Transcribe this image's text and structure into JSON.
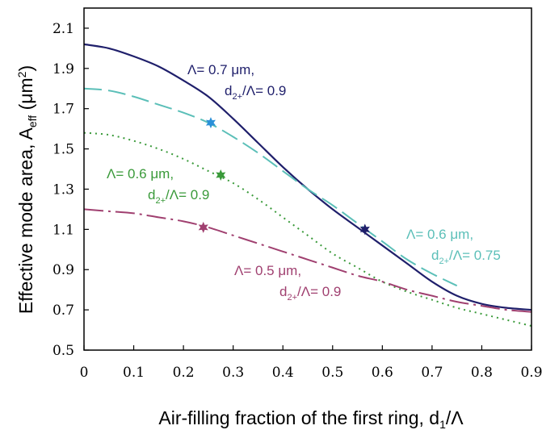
{
  "chart_data": {
    "type": "line",
    "xlabel": "Air-filling fraction of the first ring, d",
    "xlabel_sub": "1",
    "xlabel_tail": "/Λ",
    "ylabel": "Effective mode area, A",
    "ylabel_sub": "eff",
    "ylabel_unit": " (μm",
    "ylabel_sup": "2",
    "ylabel_close": ")",
    "xlim": [
      0,
      0.9
    ],
    "ylim": [
      0.5,
      2.2
    ],
    "x_ticks": [
      "0",
      "0.1",
      "0.2",
      "0.3",
      "0.4",
      "0.5",
      "0.6",
      "0.7",
      "0.8",
      "0.9"
    ],
    "y_ticks": [
      "0.5",
      "0.7",
      "0.9",
      "1.1",
      "1.3",
      "1.5",
      "1.7",
      "1.9",
      "2.1"
    ],
    "series": [
      {
        "color": "#1f1f6b",
        "dash": "",
        "x": [
          0,
          0.05,
          0.1,
          0.15,
          0.2,
          0.25,
          0.3,
          0.35,
          0.4,
          0.45,
          0.5,
          0.55,
          0.6,
          0.65,
          0.7,
          0.75,
          0.8,
          0.85,
          0.9
        ],
        "y": [
          2.02,
          2.0,
          1.96,
          1.91,
          1.84,
          1.76,
          1.65,
          1.53,
          1.41,
          1.3,
          1.2,
          1.11,
          1.02,
          0.93,
          0.84,
          0.77,
          0.73,
          0.71,
          0.7
        ]
      },
      {
        "color": "#5bbfb8",
        "dash": "22,8",
        "x": [
          0,
          0.05,
          0.1,
          0.15,
          0.2,
          0.25,
          0.3,
          0.35,
          0.4,
          0.45,
          0.5,
          0.55,
          0.6,
          0.65,
          0.7,
          0.75
        ],
        "y": [
          1.8,
          1.79,
          1.76,
          1.72,
          1.68,
          1.63,
          1.56,
          1.48,
          1.39,
          1.3,
          1.22,
          1.13,
          1.04,
          0.95,
          0.88,
          0.82
        ]
      },
      {
        "color": "#3a9a3a",
        "dash": "2,5",
        "x": [
          0,
          0.05,
          0.1,
          0.15,
          0.2,
          0.25,
          0.3,
          0.35,
          0.4,
          0.45,
          0.5,
          0.55,
          0.6,
          0.65,
          0.7,
          0.75,
          0.8,
          0.85,
          0.9
        ],
        "y": [
          1.58,
          1.57,
          1.54,
          1.5,
          1.45,
          1.39,
          1.33,
          1.25,
          1.16,
          1.07,
          0.98,
          0.91,
          0.84,
          0.79,
          0.75,
          0.71,
          0.68,
          0.65,
          0.62
        ]
      },
      {
        "color": "#a04070",
        "dash": "24,6,3,6",
        "x": [
          0,
          0.05,
          0.1,
          0.15,
          0.2,
          0.25,
          0.3,
          0.35,
          0.4,
          0.45,
          0.5,
          0.55,
          0.6,
          0.65,
          0.7,
          0.75,
          0.8,
          0.85,
          0.9
        ],
        "y": [
          1.2,
          1.19,
          1.18,
          1.16,
          1.14,
          1.11,
          1.07,
          1.03,
          0.99,
          0.95,
          0.91,
          0.87,
          0.84,
          0.8,
          0.77,
          0.74,
          0.72,
          0.7,
          0.69
        ]
      }
    ],
    "markers": [
      {
        "x": 0.255,
        "y": 1.63,
        "color": "#2a90d8"
      },
      {
        "x": 0.275,
        "y": 1.37,
        "color": "#3a9a3a"
      },
      {
        "x": 0.565,
        "y": 1.1,
        "color": "#1f1f6b"
      },
      {
        "x": 0.24,
        "y": 1.11,
        "color": "#a04070"
      }
    ],
    "annotations": [
      {
        "line1": "Λ= 0.7 μm,",
        "line2a": "d",
        "line2sub": "2+",
        "line2b": "/Λ= 0.9",
        "color": "#1f1f6b"
      },
      {
        "line1": "Λ= 0.6 μm,",
        "line2a": "d",
        "line2sub": "2+",
        "line2b": "/Λ= 0.9",
        "color": "#3a9a3a"
      },
      {
        "line1": "Λ= 0.6 μm,",
        "line2a": "d",
        "line2sub": "2+",
        "line2b": "/Λ= 0.75",
        "color": "#5bbfb8"
      },
      {
        "line1": "Λ= 0.5 μm,",
        "line2a": "d",
        "line2sub": "2+",
        "line2b": "/Λ= 0.9",
        "color": "#a04070"
      }
    ]
  }
}
